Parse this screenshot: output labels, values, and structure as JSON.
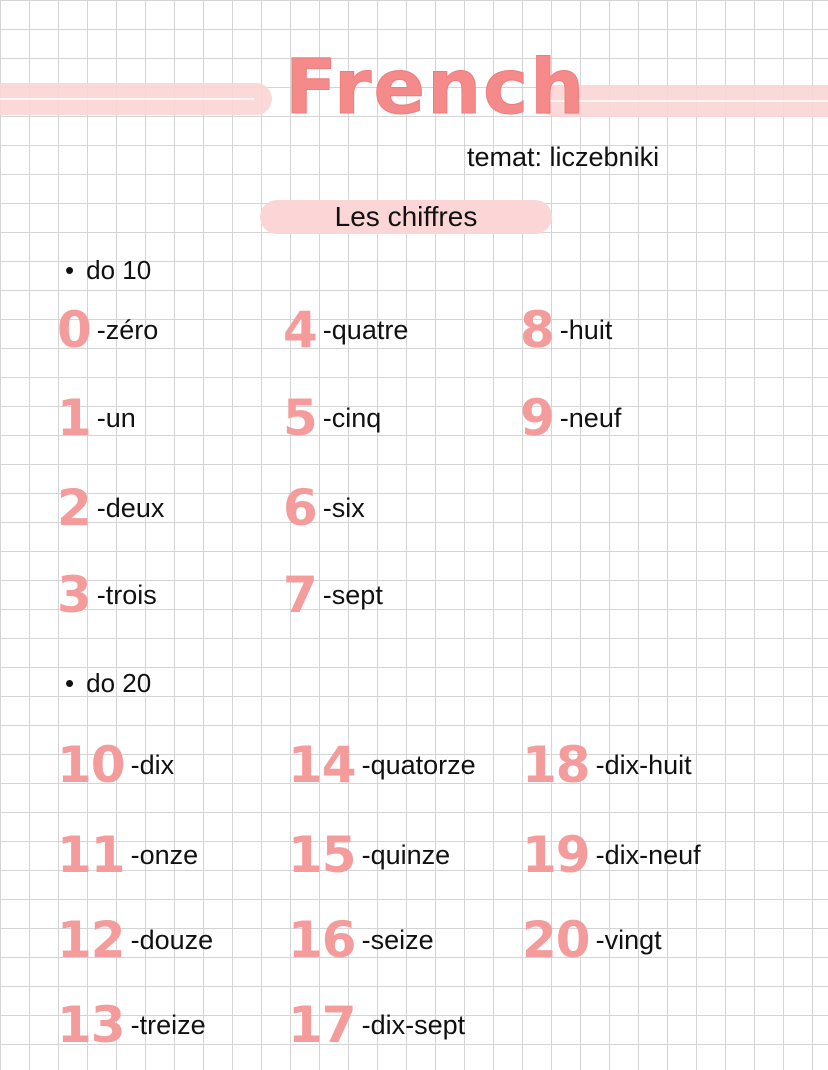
{
  "header": {
    "title": "French",
    "subtitle": "temat: liczebniki",
    "heading": "Les chiffres"
  },
  "colors": {
    "accent": "#f48a8a",
    "highlight": "#fcd6d6",
    "grid": "#d4d4d4"
  },
  "sections": [
    {
      "label": "do 10",
      "items": [
        {
          "num": "0",
          "word": "-zéro"
        },
        {
          "num": "1",
          "word": "-un"
        },
        {
          "num": "2",
          "word": "-deux"
        },
        {
          "num": "3",
          "word": "-trois"
        },
        {
          "num": "4",
          "word": "-quatre"
        },
        {
          "num": "5",
          "word": "-cinq"
        },
        {
          "num": "6",
          "word": "-six"
        },
        {
          "num": "7",
          "word": "-sept"
        },
        {
          "num": "8",
          "word": "-huit"
        },
        {
          "num": "9",
          "word": "-neuf"
        }
      ]
    },
    {
      "label": "do 20",
      "items": [
        {
          "num": "10",
          "word": "-dix"
        },
        {
          "num": "11",
          "word": "-onze"
        },
        {
          "num": "12",
          "word": "-douze"
        },
        {
          "num": "13",
          "word": "-treize"
        },
        {
          "num": "14",
          "word": "-quatorze"
        },
        {
          "num": "15",
          "word": "-quinze"
        },
        {
          "num": "16",
          "word": "-seize"
        },
        {
          "num": "17",
          "word": "-dix-sept"
        },
        {
          "num": "18",
          "word": "-dix-huit"
        },
        {
          "num": "19",
          "word": "-dix-neuf"
        },
        {
          "num": "20",
          "word": "-vingt"
        }
      ]
    }
  ]
}
